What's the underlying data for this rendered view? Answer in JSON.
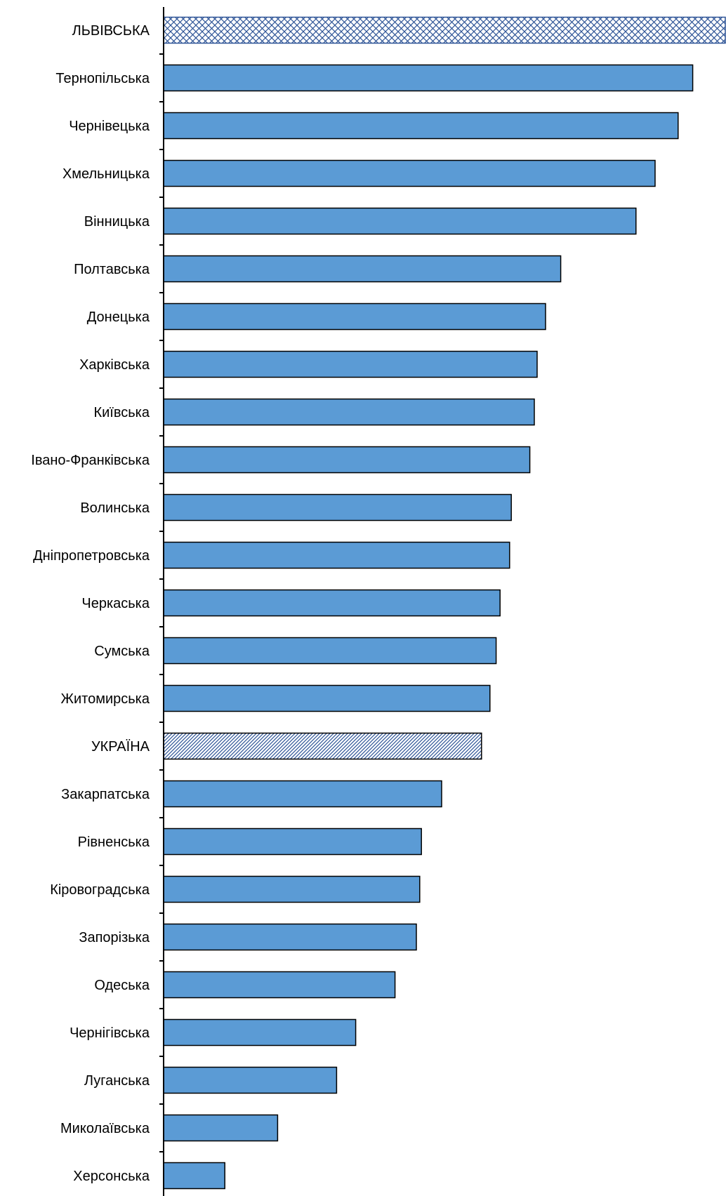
{
  "chart_data": {
    "type": "bar",
    "orientation": "horizontal",
    "title": "",
    "xlabel": "",
    "ylabel": "",
    "xlim": [
      0,
      100
    ],
    "grid": false,
    "legend": "none",
    "categories": [
      "ЛЬВІВСЬКА",
      "Тернопільська",
      "Чернівецька",
      "Хмельницька",
      "Вінницька",
      "Полтавська",
      "Донецька",
      "Харківська",
      "Київська",
      "Івано-Франківська",
      "Волинська",
      "Дніпропетровська",
      "Черкаська",
      "Сумська",
      "Житомирська",
      "УКРАЇНА",
      "Закарпатська",
      "Рівненська",
      "Кіровоградська",
      "Запорізька",
      "Одеська",
      "Чернігівська",
      "Луганська",
      "Миколаївська",
      "Херсонська"
    ],
    "values": [
      100,
      94.2,
      91.6,
      87.5,
      84.1,
      70.7,
      68.0,
      66.5,
      66.0,
      65.2,
      61.9,
      61.6,
      59.9,
      59.2,
      58.1,
      56.6,
      49.5,
      45.9,
      45.6,
      45.0,
      41.2,
      34.2,
      30.8,
      20.3,
      10.9
    ],
    "highlight": {
      "ЛЬВІВСЬКА": "crosshatch",
      "УКРАЇНА": "diagonal"
    },
    "colors": {
      "bar_fill": "#5b9bd5",
      "bar_stroke": "#000000",
      "highlight_pattern": "#2f5597",
      "axis": "#000000"
    }
  }
}
